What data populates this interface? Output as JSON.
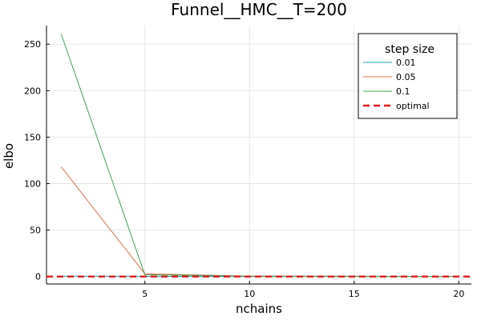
{
  "chart_data": {
    "type": "line",
    "title": "Funnel__HMC__T=200",
    "xlabel": "nchains",
    "ylabel": "elbo",
    "xlim": [
      0.3,
      20.6
    ],
    "ylim": [
      -8,
      270
    ],
    "xticks": [
      5,
      10,
      15,
      20
    ],
    "yticks": [
      0,
      50,
      100,
      150,
      200,
      250
    ],
    "grid": true,
    "legend": {
      "title": "step size",
      "placement": "top-right"
    },
    "x": [
      1,
      5,
      10,
      15,
      20
    ],
    "series": [
      {
        "name": "0.01",
        "color": "#1aa3c3",
        "style": "solid",
        "values": [
          0.5,
          0.2,
          0.1,
          0.1,
          0.1
        ]
      },
      {
        "name": "0.05",
        "color": "#e26f46",
        "style": "solid",
        "values": [
          118,
          3,
          0.5,
          0.3,
          0.2
        ]
      },
      {
        "name": "0.1",
        "color": "#3da44d",
        "style": "solid",
        "values": [
          261,
          2,
          0.4,
          0.3,
          0.2
        ]
      },
      {
        "name": "optimal",
        "color": "#e11919",
        "style": "dashed",
        "x": [
          0.3,
          20.6
        ],
        "values": [
          0,
          0
        ]
      }
    ]
  }
}
